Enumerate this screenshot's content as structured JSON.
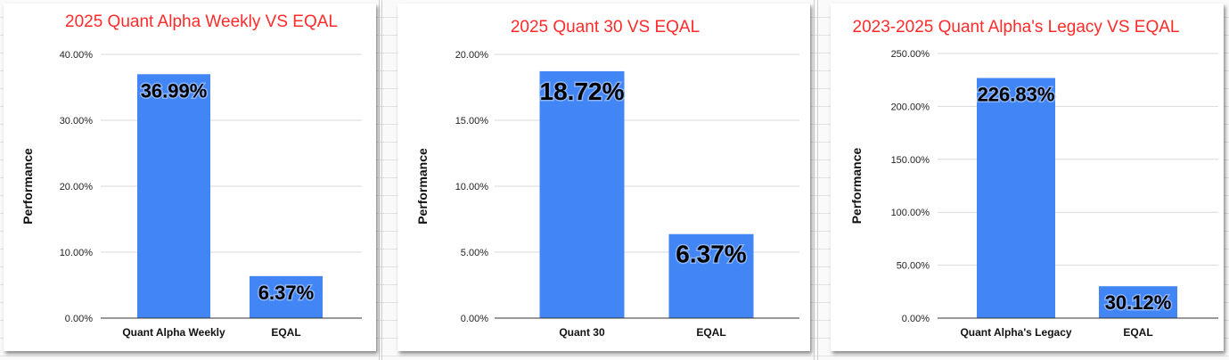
{
  "chart_data": [
    {
      "type": "bar",
      "title": "2025 Quant Alpha Weekly VS EQAL",
      "ylabel": "Performance",
      "xlabel": "",
      "categories": [
        "Quant Alpha Weekly",
        "EQAL"
      ],
      "values": [
        36.99,
        6.37
      ],
      "data_labels": [
        "36.99%",
        "6.37%"
      ],
      "ylim": [
        0,
        40
      ],
      "yticks": [
        0,
        10,
        20,
        30,
        40
      ],
      "ytick_labels": [
        "0.00%",
        "10.00%",
        "20.00%",
        "30.00%",
        "40.00%"
      ],
      "grid": true,
      "legend": "none",
      "bar_color": "#4285f4",
      "title_color": "#ff2a2a"
    },
    {
      "type": "bar",
      "title": "2025 Quant 30 VS EQAL",
      "ylabel": "Performance",
      "xlabel": "",
      "categories": [
        "Quant 30",
        "EQAL"
      ],
      "values": [
        18.72,
        6.37
      ],
      "data_labels": [
        "18.72%",
        "6.37%"
      ],
      "ylim": [
        0,
        20
      ],
      "yticks": [
        0,
        5,
        10,
        15,
        20
      ],
      "ytick_labels": [
        "0.00%",
        "5.00%",
        "10.00%",
        "15.00%",
        "20.00%"
      ],
      "grid": true,
      "legend": "none",
      "bar_color": "#4285f4",
      "title_color": "#ff2a2a"
    },
    {
      "type": "bar",
      "title": "2023-2025 Quant Alpha's Legacy VS EQAL",
      "ylabel": "Performance",
      "xlabel": "",
      "categories": [
        "Quant Alpha's Legacy",
        "EQAL"
      ],
      "values": [
        226.83,
        30.12
      ],
      "data_labels": [
        "226.83%",
        "30.12%"
      ],
      "ylim": [
        0,
        250
      ],
      "yticks": [
        0,
        50,
        100,
        150,
        200,
        250
      ],
      "ytick_labels": [
        "0.00%",
        "50.00%",
        "100.00%",
        "150.00%",
        "200.00%",
        "250.00%"
      ],
      "grid": true,
      "legend": "none",
      "bar_color": "#4285f4",
      "title_color": "#ff2a2a"
    }
  ]
}
